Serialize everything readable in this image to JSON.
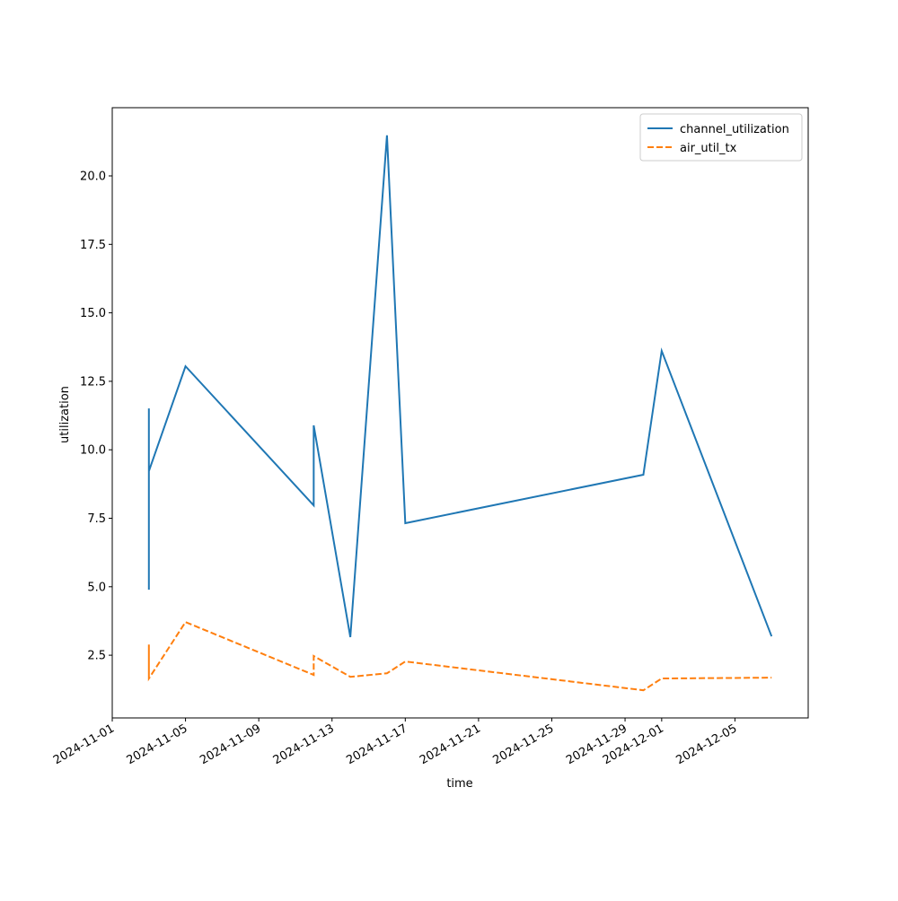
{
  "chart_data": {
    "type": "line",
    "x_label": "time",
    "y_label": "utilization",
    "x": [
      "2024-11-03",
      "2024-11-03",
      "2024-11-03",
      "2024-11-03",
      "2024-11-03",
      "2024-11-05",
      "2024-11-12",
      "2024-11-12",
      "2024-11-14",
      "2024-11-16",
      "2024-11-17",
      "2024-11-30",
      "2024-12-01",
      "2024-12-07"
    ],
    "series": [
      {
        "name": "channel_utilization",
        "color": "#1f77b4",
        "dash": "solid",
        "values": [
          6.86,
          4.89,
          11.51,
          5.06,
          9.22,
          13.05,
          7.97,
          10.89,
          3.16,
          21.48,
          7.32,
          9.09,
          13.61,
          3.19
        ]
      },
      {
        "name": "air_util_tx",
        "color": "#ff7f0e",
        "dash": "dashed",
        "values": [
          1.68,
          2.89,
          2.01,
          2.01,
          1.65,
          3.71,
          1.78,
          2.47,
          1.71,
          1.84,
          2.27,
          1.22,
          1.65,
          1.68
        ]
      }
    ],
    "xlim": [
      "2024-11-01",
      "2024-12-09"
    ],
    "xticks": [
      "2024-11-01",
      "2024-11-05",
      "2024-11-09",
      "2024-11-13",
      "2024-11-17",
      "2024-11-21",
      "2024-11-25",
      "2024-11-29",
      "2024-12-01",
      "2024-12-05"
    ],
    "ylim": [
      0.21,
      22.49
    ],
    "yticks": [
      2.5,
      {
        "value": 5,
        "label": "5.0"
      },
      7.5,
      {
        "value": 10,
        "label": "10.0"
      },
      12.5,
      {
        "value": 15,
        "label": "15.0"
      },
      17.5,
      {
        "value": 20,
        "label": "20.0"
      }
    ],
    "grid": false,
    "legend": "upper right"
  }
}
